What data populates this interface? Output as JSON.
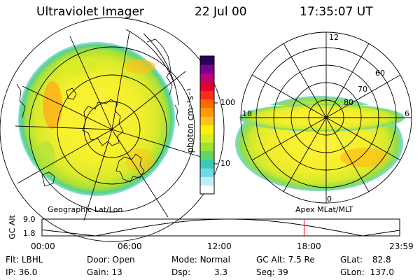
{
  "header": {
    "title": "Ultraviolet Imager",
    "date": "22 Jul 00",
    "time": "17:35:07 UT"
  },
  "colorbar": {
    "label": "photon cm⁻²s⁻¹",
    "ticks": [
      {
        "label": "100",
        "value": 100
      },
      {
        "label": "10",
        "value": 10
      }
    ],
    "colors": [
      "#ffffff",
      "#bfeff5",
      "#6fd9e6",
      "#39c9b4",
      "#5fd46a",
      "#9ee22f",
      "#d8ec26",
      "#fff200",
      "#ffc21a",
      "#ff9a00",
      "#ff6a00",
      "#ff2a1a",
      "#e0002a",
      "#c0007a",
      "#7a0090",
      "#2b0060"
    ]
  },
  "left_panel": {
    "caption": "Geographic Lat/Lon"
  },
  "right_panel": {
    "caption": "Apex MLat/MLT",
    "mlt_labels": [
      {
        "label": "12",
        "mlt": 12
      },
      {
        "label": "18",
        "mlt": 18
      },
      {
        "label": "6",
        "mlt": 6
      },
      {
        "label": "0",
        "mlt": 0
      }
    ],
    "lat_labels": [
      {
        "label": "60",
        "lat": 60
      },
      {
        "label": "70",
        "lat": 70
      },
      {
        "label": "80",
        "lat": 80
      }
    ]
  },
  "altitude_plot": {
    "ylabel": "GC Alt",
    "yticks": [
      "9.0",
      "1.8"
    ],
    "ylim": [
      1.8,
      9.0
    ],
    "xticks": [
      "00:00",
      "06:00",
      "12:00",
      "18:00",
      "23:59"
    ],
    "marker_time_hours": 17.585,
    "marker_color": "#ff0000"
  },
  "status": {
    "row1": [
      {
        "key": "Flt:",
        "val": "LBHL"
      },
      {
        "key": "Door:",
        "val": "Open"
      },
      {
        "key": "Mode:",
        "val": "Normal"
      },
      {
        "key": "GC Alt:",
        "val": "7.5 Re"
      },
      {
        "key": "GLat:",
        "val": "82.8"
      }
    ],
    "row2": [
      {
        "key": "IP:",
        "val": "36.0"
      },
      {
        "key": "Gain:",
        "val": "13"
      },
      {
        "key": "Dsp:",
        "val": "3.3"
      },
      {
        "key": "Seq:",
        "val": "39"
      },
      {
        "key": "GLon:",
        "val": "137.0"
      }
    ]
  }
}
